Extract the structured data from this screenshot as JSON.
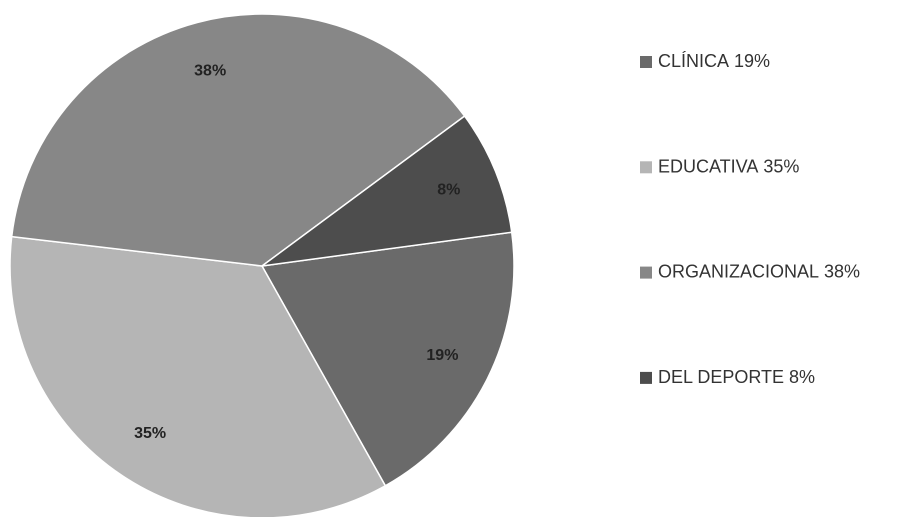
{
  "chart_data": {
    "type": "pie",
    "categories": [
      "CLÍNICA",
      "EDUCATIVA",
      "ORGANIZACIONAL",
      "DEL DEPORTE"
    ],
    "values": [
      19,
      35,
      38,
      8
    ],
    "value_labels": [
      "19%",
      "35%",
      "38%",
      "8%"
    ],
    "colors": [
      "#6a6a6a",
      "#b5b5b5",
      "#878787",
      "#4d4d4d"
    ],
    "legend": "right"
  }
}
